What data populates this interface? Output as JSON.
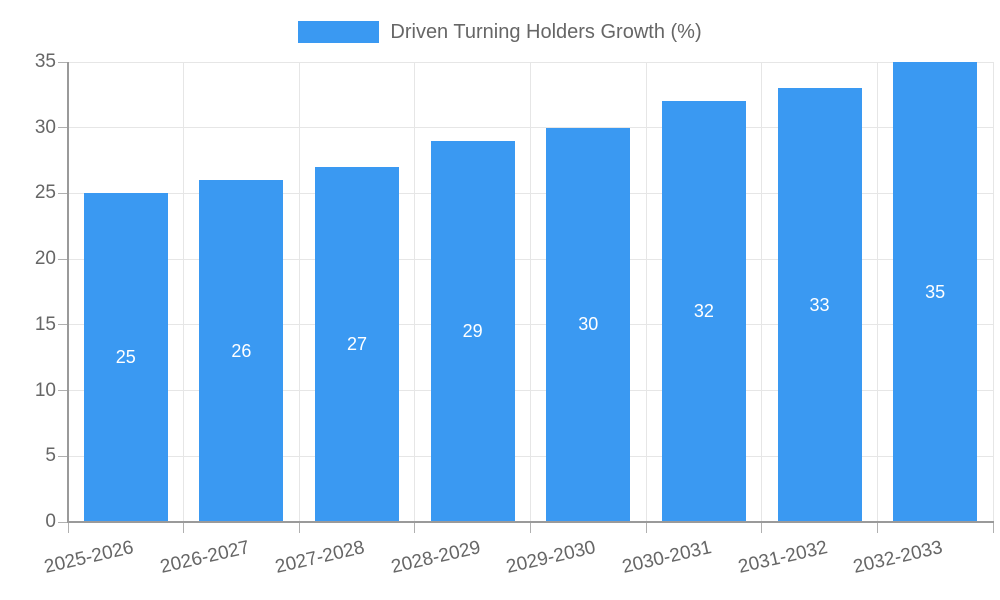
{
  "legend": {
    "label": "Driven Turning Holders Growth (%)"
  },
  "colors": {
    "bar": "#3A99F2",
    "axis_text": "#666666",
    "value_label": "#ffffff"
  },
  "chart_data": {
    "type": "bar",
    "title": "Driven Turning Holders Growth (%)",
    "series_name": "Driven Turning Holders Growth (%)",
    "categories": [
      "2025-2026",
      "2026-2027",
      "2027-2028",
      "2028-2029",
      "2029-2030",
      "2030-2031",
      "2031-2032",
      "2032-2033"
    ],
    "values": [
      25,
      26,
      27,
      29,
      30,
      32,
      33,
      35
    ],
    "y_ticks": [
      0,
      5,
      10,
      15,
      20,
      25,
      30,
      35
    ],
    "ylim": [
      0,
      35
    ],
    "ytick_step": 5,
    "xlabel": "",
    "ylabel": "",
    "grid": "both",
    "legend_position": "top-center",
    "value_labels": "inside-center-white",
    "x_label_rotation_deg": -13
  }
}
